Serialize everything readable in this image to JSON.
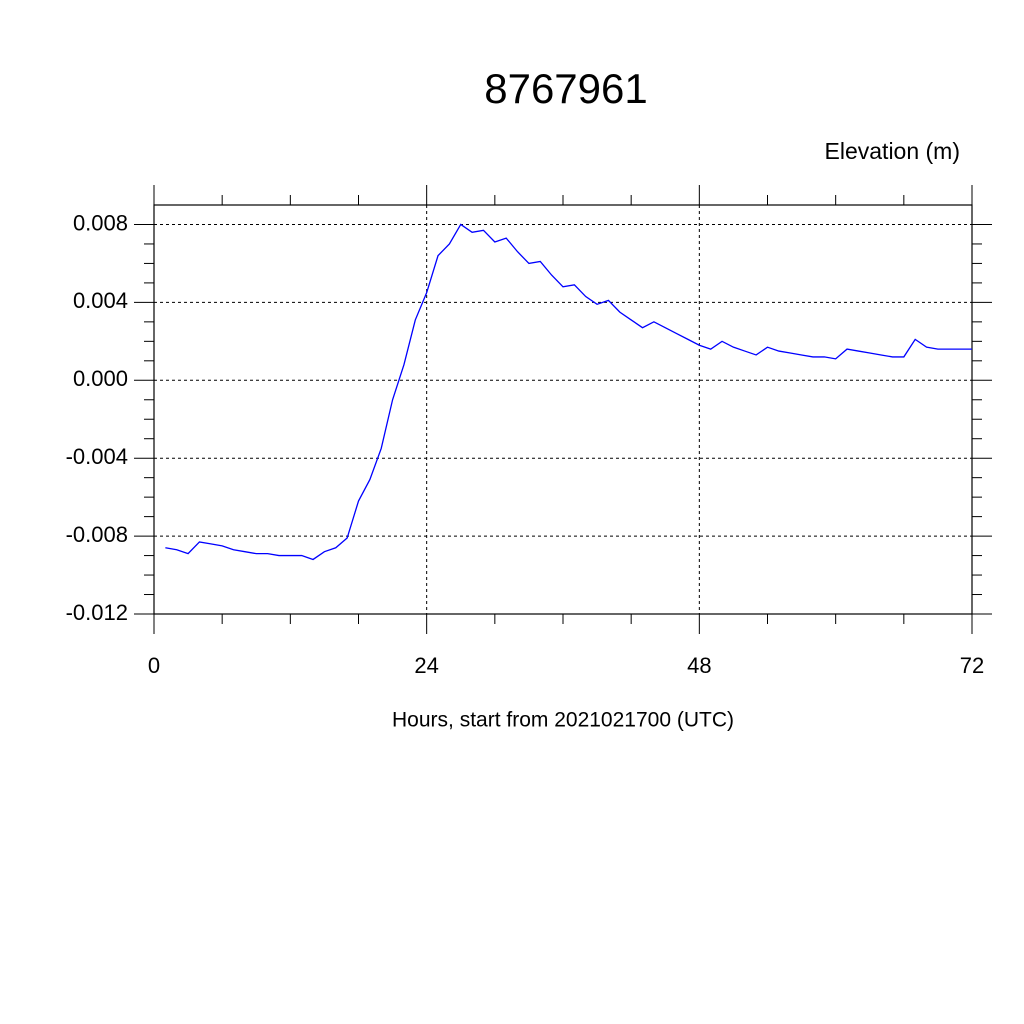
{
  "chart_data": {
    "type": "line",
    "title": "8767961",
    "subtitle": "Elevation (m)",
    "x_label": "Hours, start from 2021021700 (UTC)",
    "x": [
      1,
      2,
      3,
      4,
      5,
      6,
      7,
      8,
      9,
      10,
      11,
      12,
      13,
      14,
      15,
      16,
      17,
      18,
      19,
      20,
      21,
      22,
      23,
      24,
      25,
      26,
      27,
      28,
      29,
      30,
      31,
      32,
      33,
      34,
      35,
      36,
      37,
      38,
      39,
      40,
      41,
      42,
      43,
      44,
      45,
      46,
      47,
      48,
      49,
      50,
      51,
      52,
      53,
      54,
      55,
      56,
      57,
      58,
      59,
      60,
      61,
      62,
      63,
      64,
      65,
      66,
      67,
      68,
      69,
      70,
      71,
      72
    ],
    "series": [
      {
        "color": "#0000ff",
        "values": [
          -0.0086,
          -0.0087,
          -0.0089,
          -0.0083,
          -0.0084,
          -0.0085,
          -0.0087,
          -0.0088,
          -0.0089,
          -0.0089,
          -0.009,
          -0.009,
          -0.009,
          -0.0092,
          -0.0088,
          -0.0086,
          -0.0081,
          -0.0062,
          -0.0051,
          -0.0035,
          -0.001,
          0.0008,
          0.0031,
          0.0045,
          0.0064,
          0.007,
          0.008,
          0.0076,
          0.0077,
          0.0071,
          0.0073,
          0.0066,
          0.006,
          0.0061,
          0.0054,
          0.0048,
          0.0049,
          0.0043,
          0.0039,
          0.0041,
          0.0035,
          0.0031,
          0.0027,
          0.003,
          0.0027,
          0.0024,
          0.0021,
          0.0018,
          0.0016,
          0.002,
          0.0017,
          0.0015,
          0.0013,
          0.0017,
          0.0015,
          0.0014,
          0.0013,
          0.0012,
          0.0012,
          0.0011,
          0.0016,
          0.0015,
          0.0014,
          0.0013,
          0.0012,
          0.0012,
          0.0021,
          0.0017,
          0.0016,
          0.0016,
          0.0016,
          0.0016
        ]
      }
    ],
    "xlim": [
      0,
      72
    ],
    "xticks": [
      0,
      24,
      48,
      72
    ],
    "ylim": [
      -0.012,
      0.009
    ],
    "yticks": [
      -0.012,
      -0.008,
      -0.004,
      {
        "value": 0,
        "label": "0.000"
      },
      0.004,
      0.008
    ],
    "grid": true
  }
}
